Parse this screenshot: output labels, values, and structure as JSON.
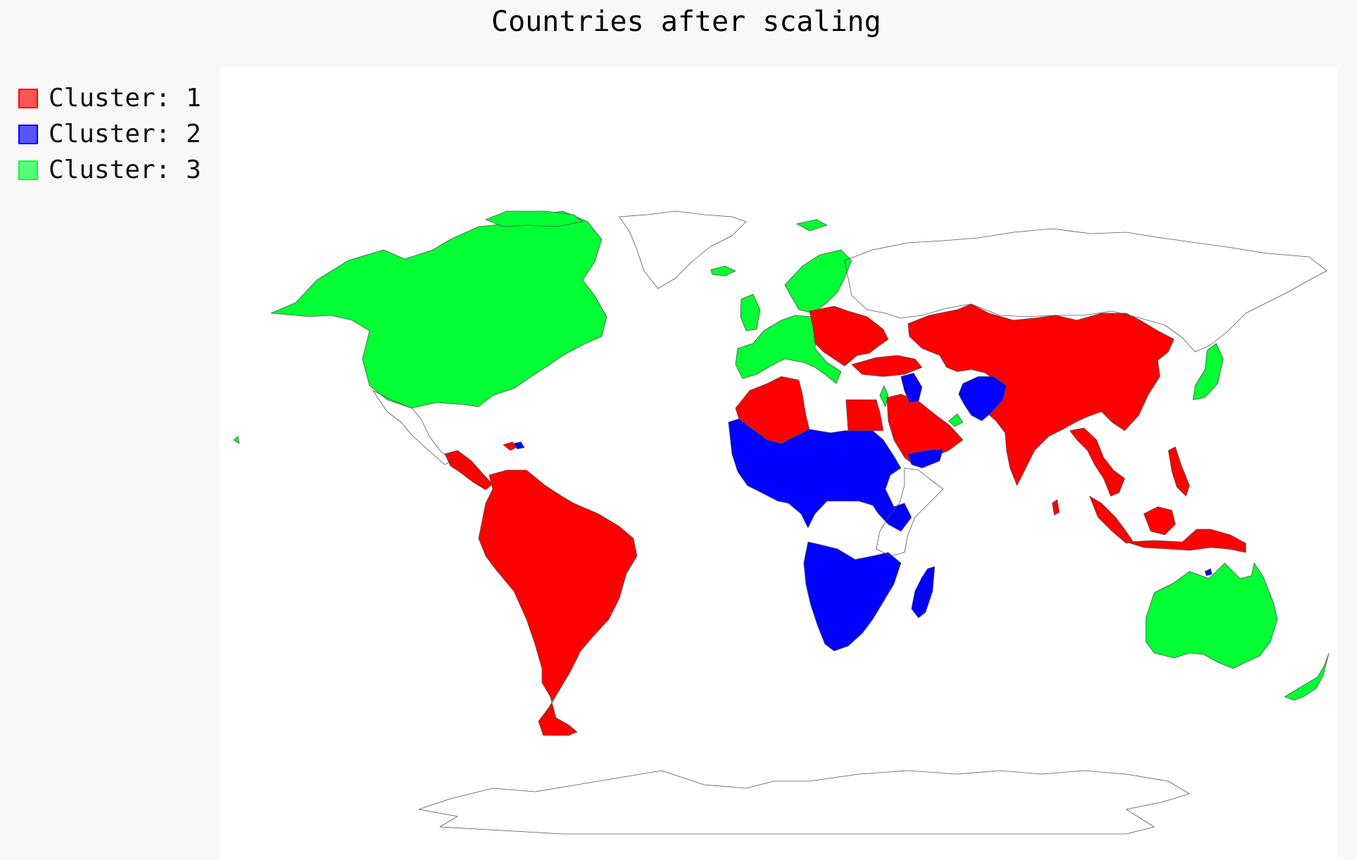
{
  "title": "Countries after scaling",
  "legend": [
    {
      "label": "Cluster: 1",
      "color": "#ff0000",
      "fill": "#ff5555"
    },
    {
      "label": "Cluster: 2",
      "color": "#0000ff",
      "fill": "#5555ff"
    },
    {
      "label": "Cluster: 3",
      "color": "#00ff33",
      "fill": "#55ff77"
    }
  ],
  "colors": {
    "background": "#f8f8f8",
    "panel": "#ffffff",
    "outline": "#555555"
  }
}
